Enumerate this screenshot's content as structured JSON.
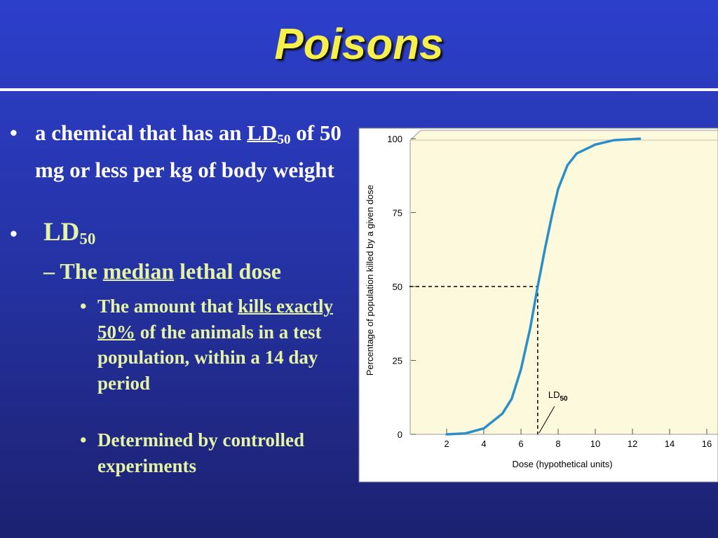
{
  "title": "Poisons",
  "bullets": [
    {
      "parts": [
        "a chemical that has an",
        "LD",
        "50",
        "of 50 mg or less per kg of body weight"
      ]
    },
    {
      "parts": [
        "LD",
        "50"
      ],
      "sub": [
        {
          "parts": [
            "The",
            "median",
            "lethal dose"
          ],
          "sub": [
            {
              "parts": [
                "The amount that",
                "kills exactly 50%",
                "of the animals in a test population, within a 14 day period"
              ]
            },
            {
              "parts": [
                "Determined by controlled experiments"
              ]
            }
          ]
        }
      ]
    }
  ],
  "chart_data": {
    "type": "line",
    "xlabel": "Dose (hypothetical units)",
    "ylabel": "Percentage of population killed by a given dose",
    "x": [
      2,
      3,
      4,
      5,
      5.5,
      6,
      6.5,
      6.9,
      7.3,
      7.7,
      8,
      8.5,
      9,
      10,
      11,
      12.4
    ],
    "series": [
      {
        "color": "#2a8fc8",
        "values": [
          0,
          0.3,
          2,
          7,
          12,
          22,
          36,
          50,
          63,
          75,
          83,
          91,
          95,
          98,
          99.5,
          100
        ]
      }
    ],
    "xlim": [
      0,
      16
    ],
    "ylim": [
      0,
      100
    ],
    "xticks": [
      2,
      4,
      6,
      8,
      10,
      12,
      14,
      16
    ],
    "yticks": [
      0,
      25,
      50,
      75,
      100
    ],
    "annotation": {
      "text": "LD",
      "subscript": "50",
      "x": 6.9,
      "y": 50
    }
  }
}
